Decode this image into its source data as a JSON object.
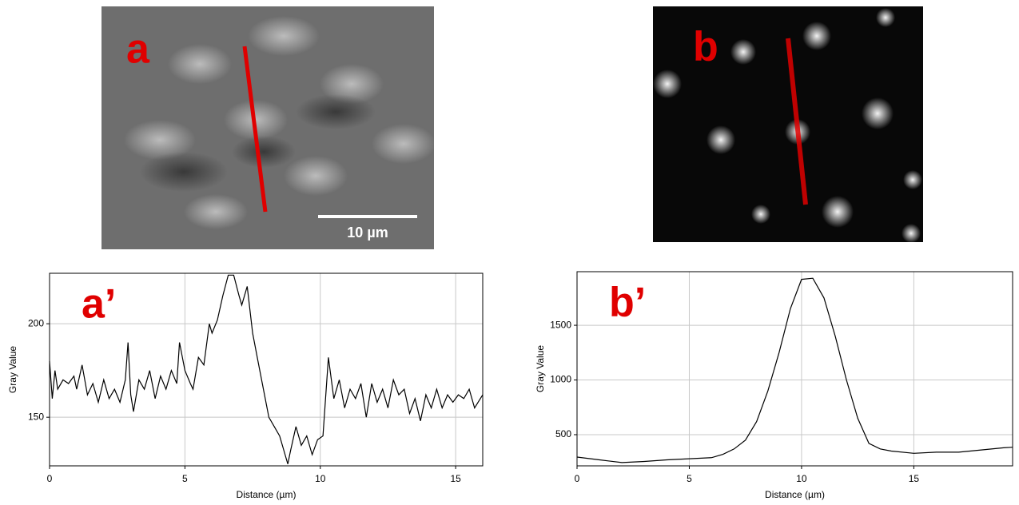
{
  "images": [
    {
      "label": "a",
      "scale_bar": "10 µm"
    },
    {
      "label": "b"
    }
  ],
  "chart_data": [
    {
      "type": "line",
      "panel_label": "a’",
      "xlabel": "Distance (µm)",
      "ylabel": "Gray Value",
      "color": "#000000",
      "grid": true,
      "xlim": [
        0,
        16
      ],
      "ylim": [
        124,
        227
      ],
      "xticks": [
        0,
        5,
        10,
        15
      ],
      "yticks": [
        150,
        200
      ],
      "x": [
        0,
        0.1,
        0.2,
        0.3,
        0.5,
        0.7,
        0.9,
        1.0,
        1.2,
        1.4,
        1.6,
        1.8,
        2.0,
        2.2,
        2.4,
        2.6,
        2.8,
        2.9,
        3.0,
        3.1,
        3.3,
        3.5,
        3.7,
        3.9,
        4.1,
        4.3,
        4.5,
        4.7,
        4.8,
        5.0,
        5.2,
        5.3,
        5.5,
        5.7,
        5.9,
        6.0,
        6.2,
        6.4,
        6.6,
        6.8,
        7.0,
        7.1,
        7.3,
        7.5,
        7.7,
        7.9,
        8.1,
        8.3,
        8.5,
        8.7,
        8.8,
        8.9,
        9.1,
        9.3,
        9.5,
        9.7,
        9.9,
        10.1,
        10.3,
        10.5,
        10.7,
        10.9,
        11.1,
        11.3,
        11.5,
        11.7,
        11.9,
        12.1,
        12.3,
        12.5,
        12.7,
        12.9,
        13.1,
        13.3,
        13.5,
        13.7,
        13.9,
        14.1,
        14.3,
        14.5,
        14.7,
        14.9,
        15.1,
        15.3,
        15.5,
        15.7,
        16.0
      ],
      "values": [
        180,
        160,
        175,
        165,
        170,
        168,
        172,
        165,
        178,
        162,
        168,
        158,
        170,
        160,
        165,
        158,
        170,
        190,
        162,
        153,
        170,
        165,
        175,
        160,
        172,
        165,
        175,
        168,
        190,
        175,
        168,
        165,
        182,
        178,
        200,
        195,
        202,
        215,
        226,
        226,
        215,
        210,
        220,
        195,
        180,
        165,
        150,
        145,
        140,
        130,
        125,
        132,
        145,
        135,
        140,
        130,
        138,
        140,
        182,
        160,
        170,
        155,
        165,
        160,
        168,
        150,
        168,
        158,
        165,
        155,
        170,
        162,
        165,
        152,
        160,
        148,
        162,
        155,
        165,
        155,
        162,
        158,
        162,
        160,
        165,
        155,
        162
      ]
    },
    {
      "type": "line",
      "panel_label": "b’",
      "xlabel": "Distance (µm)",
      "ylabel": "Gray Value",
      "color": "#000000",
      "grid": true,
      "xlim": [
        0,
        19.4
      ],
      "ylim": [
        215,
        1990
      ],
      "xticks": [
        0,
        5,
        10,
        15
      ],
      "yticks": [
        500,
        1000,
        1500
      ],
      "x": [
        0,
        1,
        2,
        3,
        4,
        5,
        6,
        6.5,
        7,
        7.5,
        8,
        8.5,
        9,
        9.5,
        10,
        10.5,
        11,
        11.5,
        12,
        12.5,
        13,
        13.5,
        14,
        15,
        16,
        17,
        18,
        19,
        19.4
      ],
      "values": [
        295,
        270,
        245,
        255,
        270,
        280,
        290,
        320,
        370,
        450,
        620,
        900,
        1250,
        1650,
        1920,
        1930,
        1750,
        1400,
        1000,
        650,
        420,
        370,
        350,
        330,
        340,
        340,
        360,
        380,
        385
      ]
    }
  ]
}
